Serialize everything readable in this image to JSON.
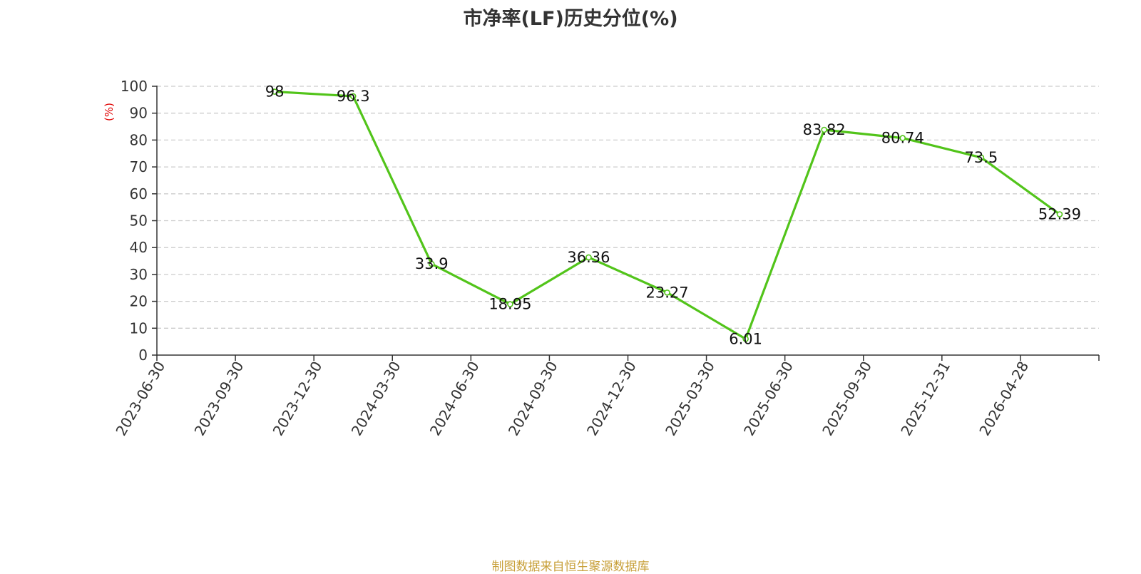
{
  "title": "市净率(LF)历史分位(%)",
  "source": "制图数据来自恒生聚源数据库",
  "colors": {
    "line": "#52c41a",
    "axis_title": "#e00000",
    "grid": "#cccccc",
    "source": "#c8a03a"
  },
  "chart_data": {
    "type": "line",
    "title": "市净率(LF)历史分位(%)",
    "xlabel": "",
    "ylabel": "(%)",
    "ylim": [
      0,
      100
    ],
    "yticks": [
      0,
      10,
      20,
      30,
      40,
      50,
      60,
      70,
      80,
      90,
      100
    ],
    "grid": true,
    "categories": [
      "2023-06-30",
      "2023-09-30",
      "2023-12-30",
      "2024-03-30",
      "2024-06-30",
      "2024-09-30",
      "2024-12-30",
      "2025-03-30",
      "2025-06-30",
      "2025-09-30",
      "2025-12-31",
      "2026-04-28"
    ],
    "series": [
      {
        "values": [
          null,
          98,
          96.3,
          33.9,
          18.95,
          36.36,
          23.27,
          6.01,
          83.82,
          80.74,
          73.5,
          52.39
        ],
        "labels": [
          "",
          "98",
          "96.3",
          "33.9",
          "18.95",
          "36.36",
          "23.27",
          "6.01",
          "83.82",
          "80.74",
          "73.5",
          "52.39"
        ]
      }
    ]
  }
}
